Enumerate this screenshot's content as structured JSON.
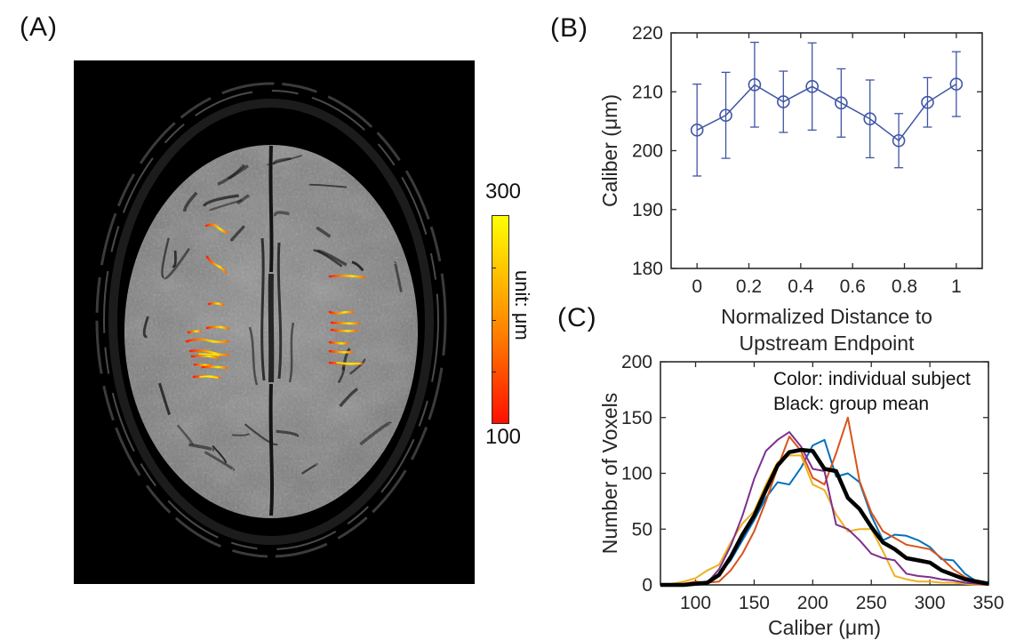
{
  "figure": {
    "background": "#ffffff",
    "panels": {
      "a": {
        "label": "(A)"
      },
      "b": {
        "label": "(B)"
      },
      "c": {
        "label": "(C)"
      }
    }
  },
  "colorbar": {
    "top_label": "300",
    "bottom_label": "100",
    "unit_label": "unit: μm",
    "top_color": "#ffff00",
    "bottom_color": "#ff0f00"
  },
  "chart_data": [
    {
      "id": "panel-b",
      "type": "line",
      "title": "",
      "xlabel_lines": [
        "Normalized Distance to",
        "Upstream Endpoint"
      ],
      "ylabel": "Caliber (μm)",
      "xlim": [
        -0.1,
        1.1
      ],
      "ylim": [
        180,
        220
      ],
      "xticks": [
        0,
        0.2,
        0.4,
        0.6,
        0.8,
        1
      ],
      "xtick_labels": [
        "0",
        "0.2",
        "0.4",
        "0.6",
        "0.8",
        "1"
      ],
      "yticks": [
        180,
        190,
        200,
        210,
        220
      ],
      "grid": false,
      "legend": null,
      "marker": "open-circle",
      "color": "#4055A5",
      "x": [
        0,
        0.111,
        0.222,
        0.333,
        0.444,
        0.556,
        0.667,
        0.778,
        0.889,
        1
      ],
      "y": [
        203.5,
        206.0,
        211.2,
        208.3,
        210.9,
        208.1,
        205.4,
        201.7,
        208.2,
        211.3
      ],
      "yerr": [
        7.8,
        7.3,
        7.2,
        5.2,
        7.4,
        5.8,
        6.6,
        4.6,
        4.2,
        5.5
      ]
    },
    {
      "id": "panel-c",
      "type": "line",
      "title": "",
      "xlabel": "Caliber (μm)",
      "ylabel": "Number of Voxels",
      "xlim": [
        70,
        350
      ],
      "ylim": [
        0,
        200
      ],
      "xticks": [
        100,
        150,
        200,
        250,
        300,
        350
      ],
      "xtick_labels": [
        "100",
        "150",
        "200",
        "250",
        "300",
        "350"
      ],
      "yticks": [
        0,
        50,
        100,
        150,
        200
      ],
      "grid": false,
      "annotations": [
        "Color: individual subject",
        "Black: group mean"
      ],
      "x": [
        70,
        80,
        90,
        100,
        110,
        120,
        130,
        140,
        150,
        160,
        170,
        180,
        190,
        200,
        210,
        220,
        230,
        240,
        250,
        260,
        270,
        280,
        290,
        300,
        310,
        320,
        330,
        340,
        350
      ],
      "series": [
        {
          "name": "subject-blue",
          "color": "#0072BD",
          "width": 2,
          "values": [
            0,
            0,
            0,
            1,
            2,
            10,
            22,
            40,
            58,
            78,
            92,
            90,
            105,
            125,
            130,
            97,
            100,
            92,
            62,
            40,
            45,
            44,
            40,
            34,
            23,
            22,
            10,
            3,
            1
          ]
        },
        {
          "name": "subject-orange",
          "color": "#D95319",
          "width": 2,
          "values": [
            0,
            0,
            1,
            3,
            2,
            3,
            13,
            28,
            48,
            75,
            105,
            133,
            120,
            96,
            90,
            118,
            150,
            93,
            65,
            48,
            42,
            36,
            34,
            32,
            24,
            14,
            7,
            3,
            0
          ]
        },
        {
          "name": "subject-yellow",
          "color": "#EDB120",
          "width": 2,
          "values": [
            0,
            1,
            3,
            6,
            13,
            18,
            38,
            55,
            66,
            90,
            110,
            116,
            116,
            90,
            85,
            63,
            48,
            50,
            50,
            30,
            8,
            5,
            3,
            3,
            2,
            2,
            1,
            0,
            0
          ]
        },
        {
          "name": "subject-purple",
          "color": "#7E2F8E",
          "width": 2,
          "values": [
            0,
            0,
            0,
            1,
            2,
            14,
            35,
            62,
            95,
            120,
            130,
            137,
            124,
            104,
            102,
            54,
            50,
            40,
            28,
            24,
            22,
            10,
            8,
            7,
            5,
            4,
            2,
            1,
            0
          ]
        },
        {
          "name": "group-mean",
          "color": "#000000",
          "width": 4.5,
          "values": [
            0,
            0,
            0,
            1,
            2,
            9,
            25,
            45,
            62,
            85,
            107,
            119,
            121,
            120,
            104,
            102,
            78,
            68,
            52,
            38,
            32,
            24,
            22,
            20,
            13,
            9,
            5,
            3,
            1
          ]
        }
      ]
    }
  ]
}
